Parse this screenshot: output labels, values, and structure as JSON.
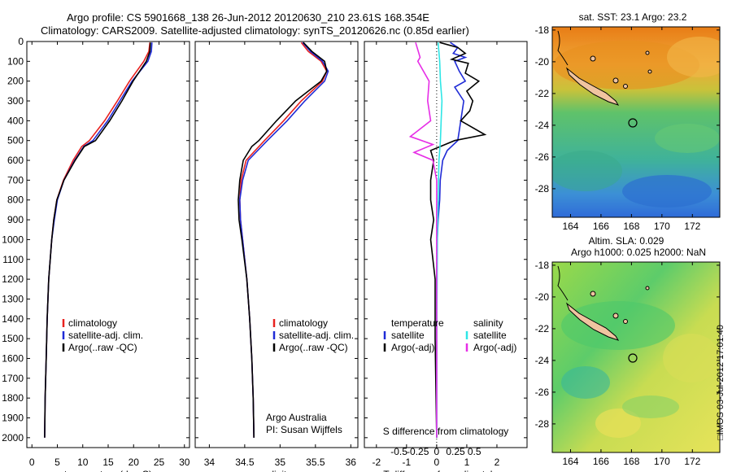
{
  "header": {
    "line1": "Argo profile: CS 5901668_138 26-Jun-2012 20120630_210 23.61S 168.354E",
    "line2": "Climatology: CARS2009. Satellite-adjusted climatology: synTS_20120626.nc (0.85d earlier)"
  },
  "colors": {
    "climatology": "#e8211f",
    "satellite": "#1f2bd6",
    "argo": "#000000",
    "sat_salinity": "#2ee6e6",
    "argo_salinity": "#e62ee6"
  },
  "chart_data": [
    {
      "type": "line",
      "id": "temperature",
      "xlabel": "temperature (deg C)",
      "xlim": [
        -1,
        31
      ],
      "xticks": [
        0,
        5,
        10,
        15,
        20,
        25,
        30
      ],
      "ylim": [
        0,
        2050
      ],
      "yticks": [
        0,
        100,
        200,
        300,
        400,
        500,
        600,
        700,
        800,
        900,
        1000,
        1100,
        1200,
        1300,
        1400,
        1500,
        1600,
        1700,
        1800,
        1900,
        2000
      ],
      "legend": [
        "climatology",
        "satellite-adj. clim.",
        "Argo(..raw -QC)"
      ],
      "series": [
        {
          "name": "climatology",
          "depth": [
            5,
            50,
            100,
            200,
            300,
            400,
            500,
            530,
            600,
            700,
            800,
            900,
            1000,
            1200,
            1400,
            1600,
            1800,
            2000
          ],
          "values": [
            23.2,
            23.0,
            22.0,
            19.2,
            16.8,
            14.3,
            11.3,
            9.8,
            8.1,
            6.2,
            4.9,
            4.3,
            3.9,
            3.3,
            3.0,
            2.8,
            2.6,
            2.5
          ]
        },
        {
          "name": "satellite-adj. clim.",
          "depth": [
            5,
            50,
            100,
            200,
            300,
            400,
            500,
            530,
            600,
            700,
            800,
            900,
            1000,
            1200,
            1400,
            1600,
            1800,
            2000
          ],
          "values": [
            23.6,
            23.5,
            22.8,
            19.7,
            17.3,
            14.9,
            12.0,
            10.2,
            8.4,
            6.3,
            5.0,
            4.4,
            3.9,
            3.3,
            3.0,
            2.8,
            2.6,
            2.5
          ]
        },
        {
          "name": "Argo(..raw -QC)",
          "depth": [
            5,
            50,
            100,
            200,
            300,
            400,
            500,
            530,
            600,
            700,
            800,
            900,
            1000,
            1200,
            1400,
            1600,
            1800,
            2000
          ],
          "values": [
            23.3,
            23.2,
            22.5,
            19.9,
            17.7,
            15.3,
            12.5,
            10.3,
            8.5,
            6.3,
            4.9,
            4.3,
            3.9,
            3.3,
            3.0,
            2.8,
            2.6,
            2.5
          ]
        }
      ]
    },
    {
      "type": "line",
      "id": "salinity",
      "xlabel": "salinity",
      "xlim": [
        33.8,
        36.1
      ],
      "xticks": [
        34,
        34.5,
        35,
        35.5,
        36
      ],
      "ylim": [
        0,
        2050
      ],
      "legend": [
        "climatology",
        "satellite-adj. clim.",
        "Argo(..raw -QC)"
      ],
      "annotation": [
        "Argo Australia",
        "PI: Susan Wijffels"
      ],
      "series": [
        {
          "name": "climatology",
          "depth": [
            5,
            50,
            100,
            150,
            200,
            300,
            400,
            500,
            600,
            700,
            800,
            900,
            1000,
            1200,
            1400,
            1600,
            1800,
            2000
          ],
          "values": [
            35.3,
            35.4,
            35.58,
            35.66,
            35.6,
            35.3,
            35.05,
            34.78,
            34.52,
            34.45,
            34.43,
            34.44,
            34.47,
            34.53,
            34.57,
            34.6,
            34.62,
            34.63
          ]
        },
        {
          "name": "satellite-adj. clim.",
          "depth": [
            5,
            50,
            100,
            150,
            200,
            300,
            400,
            500,
            600,
            700,
            800,
            900,
            1000,
            1200,
            1400,
            1600,
            1800,
            2000
          ],
          "values": [
            35.32,
            35.43,
            35.6,
            35.68,
            35.63,
            35.35,
            35.1,
            34.82,
            34.55,
            34.47,
            34.43,
            34.44,
            34.47,
            34.53,
            34.57,
            34.6,
            34.62,
            34.63
          ]
        },
        {
          "name": "Argo(..raw -QC)",
          "depth": [
            5,
            50,
            100,
            150,
            200,
            300,
            400,
            500,
            530,
            600,
            700,
            800,
            900,
            1000,
            1200,
            1400,
            1600,
            1800,
            2000
          ],
          "values": [
            35.33,
            35.45,
            35.63,
            35.66,
            35.58,
            35.22,
            34.95,
            34.7,
            34.6,
            34.48,
            34.43,
            34.41,
            34.42,
            34.46,
            34.53,
            34.57,
            34.6,
            34.62,
            34.63
          ]
        }
      ]
    },
    {
      "type": "line",
      "id": "difference",
      "xlabel": "T difference from climatology",
      "xlabel2": "S difference from climatology",
      "xlim": [
        -2.4,
        3.0
      ],
      "xticks": [
        -2,
        -1,
        0,
        1,
        2
      ],
      "sticks_values": [
        -0.5,
        -0.25,
        0,
        0.25,
        0.5
      ],
      "sticks_labels": [
        "-0.5",
        "-0.25",
        "0",
        "0.25",
        "0.5"
      ],
      "legend_titles": [
        "temperature",
        "salinity"
      ],
      "legend": [
        "satellite",
        "Argo(-adj)",
        "satellite",
        "Argo(-adj)"
      ],
      "series": [
        {
          "name": "temperature satellite",
          "depth": [
            5,
            30,
            60,
            80,
            100,
            150,
            200,
            230,
            300,
            400,
            450,
            500,
            550,
            600,
            700,
            800,
            900,
            1000,
            1200,
            1500,
            2000
          ],
          "values": [
            0.45,
            0.7,
            0.55,
            0.95,
            0.6,
            0.75,
            0.95,
            0.6,
            0.9,
            0.8,
            0.75,
            0.7,
            0.35,
            0.2,
            0.12,
            0.1,
            0.05,
            0.02,
            0.0,
            0.0,
            0.0
          ]
        },
        {
          "name": "temperature Argo(-adj)",
          "depth": [
            5,
            30,
            60,
            90,
            110,
            160,
            200,
            250,
            300,
            350,
            400,
            470,
            500,
            550,
            600,
            700,
            800,
            900,
            1000,
            1200,
            1500,
            2000
          ],
          "values": [
            0.1,
            0.7,
            0.95,
            0.5,
            1.05,
            0.95,
            1.4,
            1.0,
            1.2,
            1.1,
            0.8,
            1.6,
            0.6,
            -0.2,
            -0.1,
            -0.2,
            -0.2,
            -0.1,
            -0.2,
            -0.05,
            -0.05,
            0.0
          ]
        },
        {
          "name": "salinity satellite",
          "depth": [
            5,
            100,
            200,
            300,
            400,
            500,
            600,
            800,
            1000,
            1500,
            2000
          ],
          "values": [
            0.02,
            0.04,
            0.05,
            0.07,
            0.06,
            0.05,
            0.03,
            0.02,
            0.01,
            0.0,
            0.0
          ]
        },
        {
          "name": "salinity Argo(-adj)",
          "depth": [
            5,
            80,
            100,
            200,
            300,
            400,
            480,
            520,
            560,
            600,
            700,
            800,
            1000,
            2000
          ],
          "values": [
            -0.28,
            -0.22,
            -0.25,
            -0.1,
            -0.12,
            -0.08,
            -0.35,
            -0.05,
            -0.3,
            -0.05,
            0.0,
            0.0,
            0.0,
            0.0
          ]
        }
      ]
    },
    {
      "type": "heatmap",
      "id": "sst_map",
      "title": "sat. SST: 23.1  Argo: 23.2",
      "xticks": [
        164,
        166,
        168,
        170,
        172
      ],
      "yticks": [
        -18,
        -20,
        -22,
        -24,
        -26,
        -28
      ],
      "xlim": [
        162.8,
        173.8
      ],
      "ylim": [
        -29.8,
        -17.8
      ],
      "argo_position": [
        168.354,
        -23.61
      ]
    },
    {
      "type": "heatmap",
      "id": "sla_map",
      "title": "Altim. SLA: 0.029",
      "subtitle": "Argo h1000: 0.025 h2000: NaN",
      "xticks": [
        164,
        166,
        168,
        170,
        172
      ],
      "yticks": [
        -18,
        -20,
        -22,
        -24,
        -26,
        -28
      ],
      "xlim": [
        162.8,
        173.8
      ],
      "ylim": [
        -29.8,
        -17.8
      ],
      "argo_position": [
        168.354,
        -23.61
      ]
    }
  ],
  "footer": {
    "stamp": "□IMOS 03-Jul-2012 17:01:40"
  }
}
